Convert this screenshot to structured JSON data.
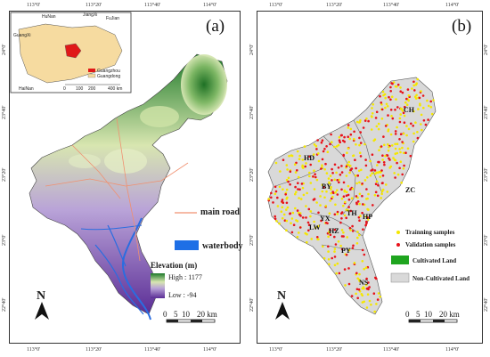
{
  "panel_a": {
    "label": "(a)",
    "x_ticks": [
      "113°0'",
      "113°20'",
      "113°40'",
      "114°0'"
    ],
    "y_ticks": [
      "24°0'",
      "23°40'",
      "23°20'",
      "23°0'",
      "22°40'"
    ],
    "inset": {
      "provinces": [
        "HuNan",
        "JiangXi",
        "FuJian",
        "GuangXi",
        "HaiNan"
      ],
      "legend": [
        "Guangzhou",
        "Guangdong"
      ],
      "scale": [
        "0",
        "100",
        "200",
        "400 km"
      ]
    },
    "legend": {
      "road": "main road",
      "water": "waterbody",
      "elevation_title": "Elevation (m)",
      "high": "High : 1177",
      "low": "Low : -94"
    },
    "north": "N",
    "scale_labels": [
      "0",
      "5",
      "10",
      "20 km"
    ]
  },
  "panel_b": {
    "label": "(b)",
    "x_ticks": [
      "113°0'",
      "113°20'",
      "113°40'",
      "114°0'"
    ],
    "y_ticks": [
      "24°0'",
      "23°40'",
      "23°20'",
      "23°0'",
      "22°40'"
    ],
    "districts": [
      "CH",
      "HD",
      "BY",
      "ZC",
      "TH",
      "HP",
      "LW",
      "YX",
      "HZ",
      "PY",
      "NS"
    ],
    "legend": {
      "training": "Trainning samples",
      "validation": "Validation samples",
      "cultivated": "Cultivated Land",
      "non_cultivated": "Non-Cultivated Land"
    },
    "north": "N",
    "scale_labels": [
      "0",
      "5",
      "10",
      "20 km"
    ]
  },
  "colors": {
    "training": "#f5e700",
    "validation": "#e8121a",
    "cultivated": "#1fa51f",
    "non_cultivated": "#d9d9d9",
    "water": "#2a6de0",
    "road": "#f09070"
  }
}
